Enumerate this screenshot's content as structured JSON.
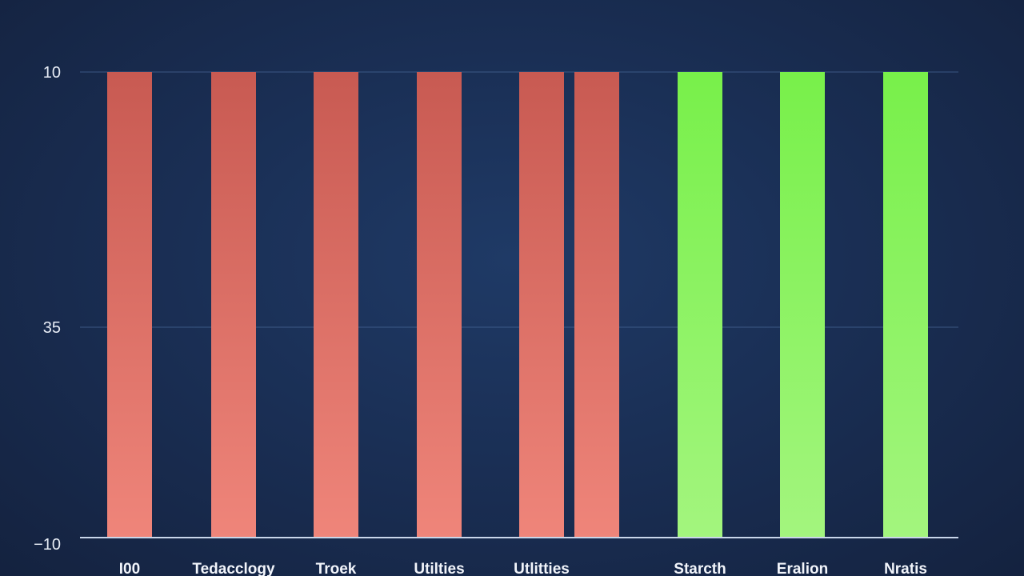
{
  "chart_data": {
    "type": "bar",
    "title": "",
    "xlabel": "",
    "ylabel": "",
    "y_tick_labels": [
      "10",
      "35",
      "−10"
    ],
    "categories": [
      "I00",
      "Tedacclogy",
      "Troek",
      "Utilties",
      "Utlitties",
      "",
      "Starcth",
      "Eralion",
      "Nratis"
    ],
    "values": [
      10,
      10,
      10,
      10,
      10,
      10,
      10,
      10,
      10
    ],
    "series_colors": [
      "negative",
      "negative",
      "negative",
      "negative",
      "negative",
      "negative",
      "positive",
      "positive",
      "positive"
    ],
    "grid": true,
    "legend": "none"
  },
  "colors": {
    "background": "#1a2f55",
    "negative_top": "#c85a52",
    "negative_bottom": "#ef857a",
    "positive_top": "#78f04a",
    "positive_bottom": "#a3f57e",
    "gridline": "#4a6a9a",
    "axis": "#c9d6ea",
    "text": "#e8edf6"
  }
}
